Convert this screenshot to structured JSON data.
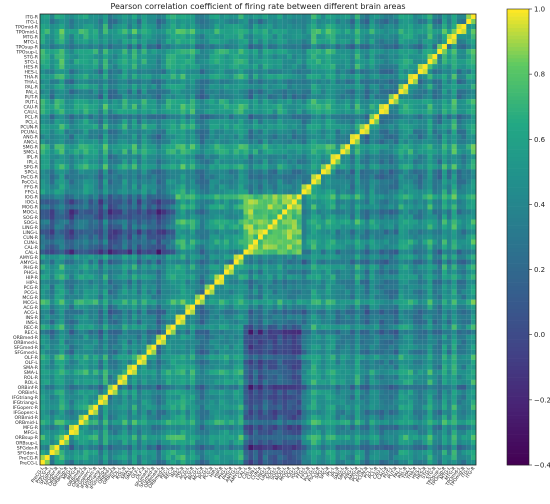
{
  "chart_data": {
    "type": "heatmap",
    "title": "Pearson correlation coefficient of firing rate between different brain areas",
    "xlabel": "",
    "ylabel": "",
    "row_labels": [
      "ITG-R",
      "ITG-L",
      "TPOmid-R",
      "TPOmid-L",
      "MTG-R",
      "MTG-L",
      "TPOsup-R",
      "TPOsup-L",
      "STG-R",
      "STG-L",
      "HES-R",
      "HES-L",
      "THA-R",
      "THA-L",
      "PAL-R",
      "PAL-L",
      "PUT-R",
      "PUT-L",
      "CAU-R",
      "CAU-L",
      "PCL-R",
      "PCL-L",
      "PCUN-R",
      "PCUN-L",
      "ANG-R",
      "ANG-L",
      "SMG-R",
      "SMG-L",
      "IPL-R",
      "IPL-L",
      "SPG-R",
      "SPG-L",
      "PoCG-R",
      "PoCG-L",
      "FFG-R",
      "FFG-L",
      "IOG-R",
      "IOG-L",
      "MOG-R",
      "MOG-L",
      "SOG-R",
      "SOG-L",
      "LING-R",
      "LING-L",
      "CUN-R",
      "CUN-L",
      "CAL-R",
      "CAL-L",
      "AMYG-R",
      "AMYG-L",
      "PHG-R",
      "PHG-L",
      "HIP-R",
      "HIP-L",
      "PCG-R",
      "PCG-L",
      "MCG-R",
      "MCG-L",
      "ACG-R",
      "ACG-L",
      "INS-R",
      "INS-L",
      "REC-R",
      "REC-L",
      "ORBmed-R",
      "ORBmed-L",
      "SFGmed-R",
      "SFGmed-L",
      "OLF-R",
      "OLF-L",
      "SMA-R",
      "SMA-L",
      "ROL-R",
      "ROL-L",
      "ORBinf-R",
      "ORBinf-L",
      "IFGtriang-R",
      "IFGtriang-L",
      "IFGoperc-R",
      "IFGoperc-L",
      "ORBmid-R",
      "ORBmid-L",
      "MFG-R",
      "MFG-L",
      "ORBsup-R",
      "ORBsup-L",
      "SFGdor-R",
      "SFGdor-L",
      "PreCG-R",
      "PreCG-L"
    ],
    "col_labels": [
      "PreCG-L",
      "PreCG-R",
      "SFGdor-L",
      "SFGdor-R",
      "ORBsup-L",
      "ORBsup-R",
      "MFG-L",
      "MFG-R",
      "ORBmid-L",
      "ORBmid-R",
      "IFGoperc-L",
      "IFGoperc-R",
      "IFGtriang-L",
      "IFGtriang-R",
      "ORBinf-L",
      "ORBinf-R",
      "ROL-L",
      "ROL-R",
      "SMA-L",
      "SMA-R",
      "OLF-L",
      "OLF-R",
      "SFGmed-L",
      "SFGmed-R",
      "ORBmed-L",
      "ORBmed-R",
      "REC-L",
      "REC-R",
      "INS-L",
      "INS-R",
      "ACG-L",
      "ACG-R",
      "MCG-L",
      "MCG-R",
      "PCG-L",
      "PCG-R",
      "HIP-L",
      "HIP-R",
      "PHG-L",
      "PHG-R",
      "AMYG-L",
      "AMYG-R",
      "CAL-L",
      "CAL-R",
      "CUN-L",
      "CUN-R",
      "LING-L",
      "LING-R",
      "SOG-L",
      "SOG-R",
      "MOG-L",
      "MOG-R",
      "IOG-L",
      "IOG-R",
      "FFG-L",
      "FFG-R",
      "PoCG-L",
      "PoCG-R",
      "SPG-L",
      "SPG-R",
      "IPL-L",
      "IPL-R",
      "SMG-L",
      "SMG-R",
      "ANG-L",
      "ANG-R",
      "PCUN-L",
      "PCUN-R",
      "PCL-L",
      "PCL-R",
      "CAU-L",
      "CAU-R",
      "PUT-L",
      "PUT-R",
      "PAL-L",
      "PAL-R",
      "THA-L",
      "THA-R",
      "HES-L",
      "HES-R",
      "STG-L",
      "STG-R",
      "TPOsup-L",
      "TPOsup-R",
      "MTG-L",
      "MTG-R",
      "TPOmid-L",
      "TPOmid-R",
      "ITG-L",
      "ITG-R"
    ],
    "diagonal_value": 1.0,
    "value_range": [
      -0.4,
      1.0
    ],
    "estimated_value_mean": 0.45,
    "estimated_value_spread": 0.2,
    "notes_visible": "Strong (~1.0) anti-diagonal line; occipital block (MOG/SOG/CUN) strongly correlated internally and weakly (~0.0) with frontal areas",
    "colorbar": {
      "cmap": "viridis",
      "vmin": -0.4,
      "vmax": 1.0,
      "ticks": [
        -0.4,
        -0.2,
        0.0,
        0.2,
        0.4,
        0.6,
        0.8,
        1.0
      ],
      "tick_labels": [
        "−0.4",
        "−0.2",
        "0.0",
        "0.2",
        "0.4",
        "0.6",
        "0.8",
        "1.0"
      ]
    },
    "grid": false,
    "legend": "colorbar-right"
  }
}
